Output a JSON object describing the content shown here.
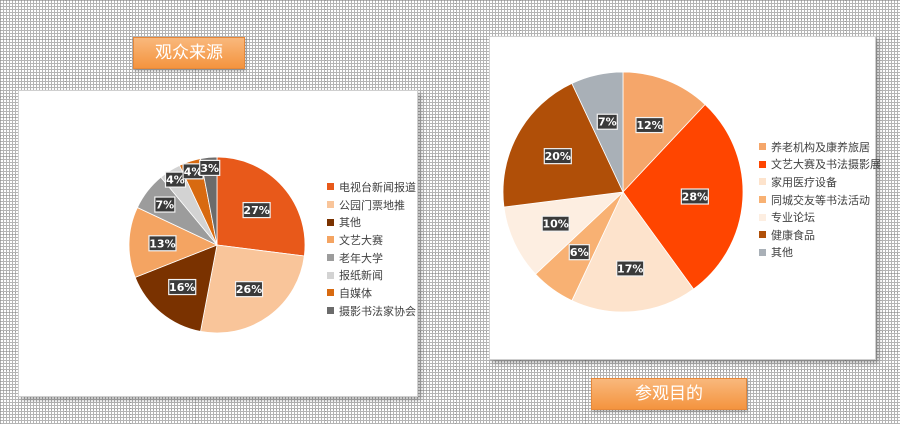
{
  "left_chart": {
    "title": "观众来源",
    "chart_data": {
      "type": "pie",
      "title": "观众来源",
      "categories": [
        "电视台新闻报道",
        "公园门票地推",
        "其他",
        "文艺大赛",
        "老年大学",
        "报纸新闻",
        "自媒体",
        "摄影书法家协会"
      ],
      "values": [
        27,
        26,
        16,
        13,
        7,
        4,
        4,
        3
      ],
      "value_labels": [
        "27%",
        "26%",
        "16%",
        "13%",
        "7%",
        "4%",
        "4%",
        "3%"
      ],
      "colors": [
        "#e8591a",
        "#f9c59a",
        "#7a3200",
        "#f4a462",
        "#9c9c9c",
        "#d3d3d3",
        "#d86a10",
        "#6b6b6b"
      ],
      "legend_position": "right"
    }
  },
  "right_chart": {
    "title": "参观目的",
    "chart_data": {
      "type": "pie",
      "title": "参观目的",
      "categories": [
        "养老机构及康养旅居",
        "文艺大赛及书法摄影展",
        "家用医疗设备",
        "同城交友等书法活动",
        "专业论坛",
        "健康食品",
        "其他"
      ],
      "values": [
        12,
        28,
        17,
        6,
        10,
        20,
        7
      ],
      "value_labels": [
        "12%",
        "28%",
        "17%",
        "6%",
        "10%",
        "20%",
        "7%"
      ],
      "colors": [
        "#f5a66a",
        "#ff4500",
        "#fde3cc",
        "#f8b173",
        "#fdeee1",
        "#b04f08",
        "#a9b0b7"
      ],
      "legend_position": "right"
    }
  }
}
